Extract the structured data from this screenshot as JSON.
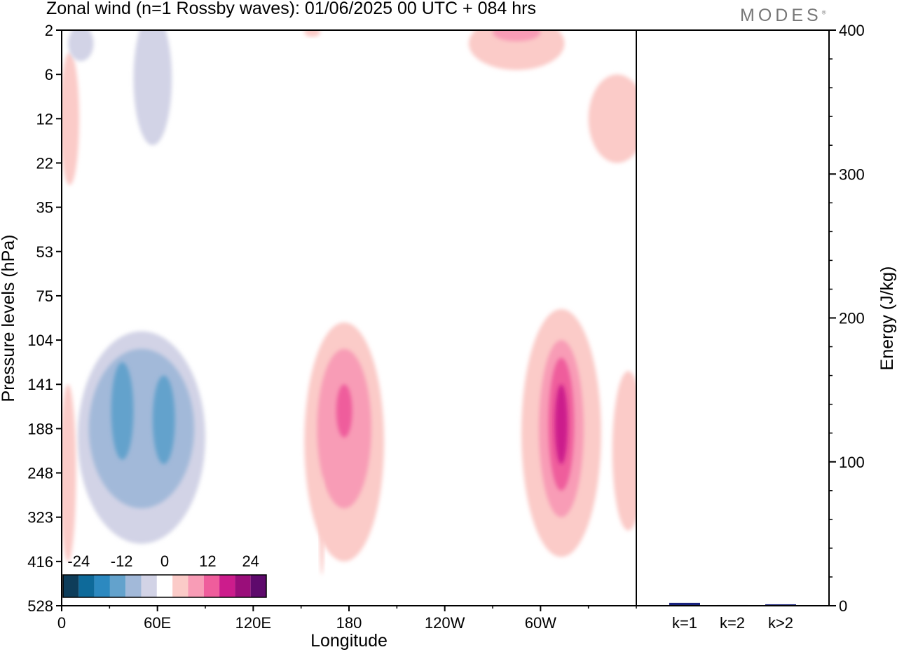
{
  "title": "Zonal wind (n=1 Rossby waves):  01/06/2025  00 UTC  + 084 hrs",
  "logo": "MODES",
  "chart_data": [
    {
      "type": "heatmap",
      "title": "Zonal wind (n=1 Rossby waves):  01/06/2025  00 UTC  + 084 hrs",
      "xlabel": "Longitude",
      "ylabel": "Pressure levels (hPa)",
      "x_ticks": [
        "0",
        "60E",
        "120E",
        "180",
        "120W",
        "60W"
      ],
      "y_ticks": [
        "2",
        "6",
        "12",
        "22",
        "35",
        "53",
        "75",
        "104",
        "141",
        "188",
        "248",
        "323",
        "416",
        "528"
      ],
      "colorbar": {
        "labels": [
          "-24",
          "-12",
          "0",
          "12",
          "24"
        ],
        "colors": [
          "#0e3d5a",
          "#0e6a9a",
          "#2c89c0",
          "#63a2cc",
          "#a2b9d9",
          "#d2d3e6",
          "#ffffff",
          "#fbcbc8",
          "#f89cb6",
          "#ef5d9c",
          "#cc1c8c",
          "#9a0e7a",
          "#5e0a6c"
        ]
      },
      "blobs": [
        {
          "lon": 50,
          "lev": 9.2,
          "rx": 40,
          "ry": 2.4,
          "color": "#d2d3e6"
        },
        {
          "lon": 50,
          "lev": 9.0,
          "rx": 33,
          "ry": 1.8,
          "color": "#a2b9d9"
        },
        {
          "lon": 38,
          "lev": 8.6,
          "rx": 7,
          "ry": 1.1,
          "color": "#63a2cc"
        },
        {
          "lon": 64,
          "lev": 8.8,
          "rx": 7,
          "ry": 1.0,
          "color": "#63a2cc"
        },
        {
          "lon": 177,
          "lev": 9.3,
          "rx": 25,
          "ry": 2.7,
          "color": "#fbcbc8"
        },
        {
          "lon": 177,
          "lev": 9.0,
          "rx": 17,
          "ry": 1.8,
          "color": "#f89cb6"
        },
        {
          "lon": 177,
          "lev": 8.6,
          "rx": 5,
          "ry": 0.6,
          "color": "#ef5d9c"
        },
        {
          "lon": 313,
          "lev": 9.1,
          "rx": 25,
          "ry": 2.8,
          "color": "#fbcbc8"
        },
        {
          "lon": 313,
          "lev": 9.0,
          "rx": 14,
          "ry": 2.0,
          "color": "#f89cb6"
        },
        {
          "lon": 313,
          "lev": 8.9,
          "rx": 8,
          "ry": 1.5,
          "color": "#ef5d9c"
        },
        {
          "lon": 313,
          "lev": 8.9,
          "rx": 4,
          "ry": 0.9,
          "color": "#cc1c8c"
        },
        {
          "lon": 355,
          "lev": 9.5,
          "rx": 10,
          "ry": 1.8,
          "color": "#fbcbc8"
        },
        {
          "lon": 4,
          "lev": 10.0,
          "rx": 5,
          "ry": 2.0,
          "color": "#fbcbc8"
        },
        {
          "lon": 163,
          "lev": 11.2,
          "rx": 1.5,
          "ry": 1.1,
          "color": "#fbcbc8"
        },
        {
          "lon": 57,
          "lev": 1.1,
          "rx": 12,
          "ry": 1.5,
          "color": "#d2d3e6"
        },
        {
          "lon": 5,
          "lev": 2.0,
          "rx": 6,
          "ry": 1.5,
          "color": "#fbcbc8"
        },
        {
          "lon": 285,
          "lev": 0.3,
          "rx": 30,
          "ry": 0.6,
          "color": "#fbcbc8"
        },
        {
          "lon": 285,
          "lev": 0.05,
          "rx": 15,
          "ry": 0.2,
          "color": "#f89cb6"
        },
        {
          "lon": 348,
          "lev": 2.0,
          "rx": 18,
          "ry": 1.0,
          "color": "#fbcbc8"
        },
        {
          "lon": 12,
          "lev": 0.3,
          "rx": 8,
          "ry": 0.4,
          "color": "#d2d3e6"
        },
        {
          "lon": 157,
          "lev": 0.05,
          "rx": 5,
          "ry": 0.1,
          "color": "#fbcbc8"
        }
      ]
    },
    {
      "type": "bar",
      "categories": [
        "k=1",
        "k=2",
        "k>2"
      ],
      "values": [
        2,
        0.5,
        1
      ],
      "ylabel": "Energy (J/kg)",
      "ylim": [
        0,
        400
      ],
      "y_ticks": [
        "0",
        "100",
        "200",
        "300",
        "400"
      ],
      "bar_color": "#1a237e"
    }
  ]
}
